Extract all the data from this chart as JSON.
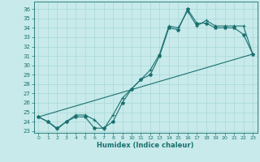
{
  "xlabel": "Humidex (Indice chaleur)",
  "bg_color": "#c8eaea",
  "line_color": "#1a7070",
  "grid_color": "#a8d8d8",
  "xlim": [
    -0.5,
    23.5
  ],
  "ylim": [
    22.8,
    36.8
  ],
  "yticks": [
    23,
    24,
    25,
    26,
    27,
    28,
    29,
    30,
    31,
    32,
    33,
    34,
    35,
    36
  ],
  "xticks": [
    0,
    1,
    2,
    3,
    4,
    5,
    6,
    7,
    8,
    9,
    10,
    11,
    12,
    13,
    14,
    15,
    16,
    17,
    18,
    19,
    20,
    21,
    22,
    23
  ],
  "line1_x": [
    0,
    1,
    2,
    3,
    4,
    5,
    6,
    7,
    8,
    9,
    10,
    11,
    12,
    13,
    14,
    15,
    16,
    17,
    18,
    19,
    20,
    21,
    22,
    23
  ],
  "line1_y": [
    24.5,
    24.0,
    23.3,
    24.0,
    24.5,
    24.5,
    23.3,
    23.3,
    24.0,
    26.0,
    27.5,
    28.5,
    29.0,
    31.0,
    34.0,
    33.8,
    36.0,
    34.5,
    34.5,
    34.0,
    34.0,
    34.0,
    33.3,
    31.2
  ],
  "line2_x": [
    0,
    1,
    2,
    3,
    4,
    5,
    6,
    7,
    8,
    9,
    10,
    11,
    12,
    13,
    14,
    15,
    16,
    17,
    18,
    19,
    20,
    21,
    22,
    23
  ],
  "line2_y": [
    24.5,
    24.0,
    23.2,
    24.0,
    24.7,
    24.7,
    24.2,
    23.2,
    24.7,
    26.5,
    27.5,
    28.5,
    29.5,
    31.2,
    34.2,
    34.0,
    35.8,
    34.2,
    34.8,
    34.2,
    34.2,
    34.2,
    34.2,
    31.2
  ],
  "line3_x": [
    0,
    23
  ],
  "line3_y": [
    24.5,
    31.2
  ]
}
